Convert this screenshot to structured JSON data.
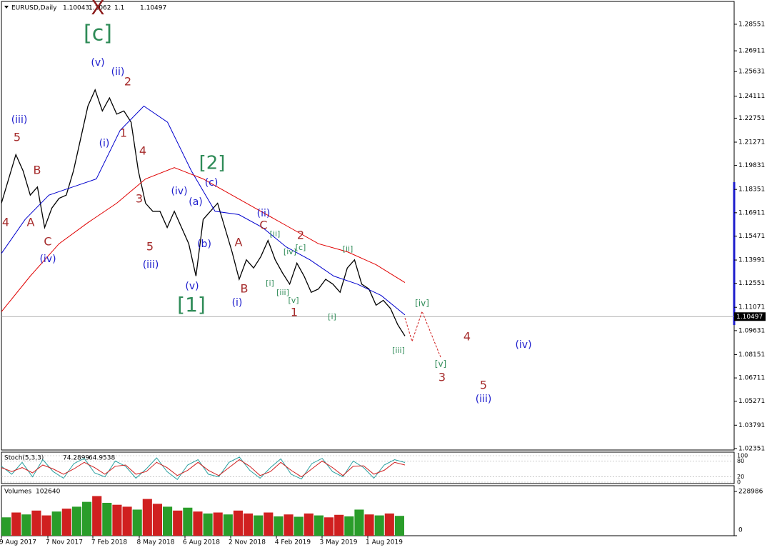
{
  "chart_data": [
    {
      "type": "line",
      "symbol": "EURUSD,Daily",
      "ohlc": [
        1.10043,
        1.1062,
        1.1,
        1.10497
      ],
      "ylim": [
        1.0226,
        1.2996
      ],
      "yticks": [
        1.28551,
        1.26911,
        1.25631,
        1.24111,
        1.22751,
        1.21271,
        1.19831,
        1.18351,
        1.16911,
        1.15471,
        1.13991,
        1.12551,
        1.11071,
        1.09631,
        1.08151,
        1.06711,
        1.05271,
        1.03791,
        1.02351
      ],
      "xtick_labels": [
        "9 Aug 2017",
        "7 Nov 2017",
        "7 Feb 2018",
        "8 May 2018",
        "6 Aug 2018",
        "2 Nov 2018",
        "4 Feb 2019",
        "3 May 2019",
        "1 Aug 2019"
      ],
      "series": [
        {
          "name": "EURUSD",
          "color": "#000000",
          "values": [
            1.175,
            1.19,
            1.205,
            1.195,
            1.18,
            1.185,
            1.16,
            1.172,
            1.178,
            1.18,
            1.195,
            1.215,
            1.235,
            1.245,
            1.232,
            1.24,
            1.23,
            1.232,
            1.225,
            1.195,
            1.175,
            1.17,
            1.17,
            1.16,
            1.17,
            1.16,
            1.15,
            1.13,
            1.165,
            1.17,
            1.175,
            1.16,
            1.145,
            1.128,
            1.14,
            1.135,
            1.142,
            1.152,
            1.14,
            1.132,
            1.125,
            1.138,
            1.13,
            1.12,
            1.122,
            1.128,
            1.125,
            1.12,
            1.135,
            1.14,
            1.125,
            1.122,
            1.112,
            1.115,
            1.11,
            1.1,
            1.093
          ]
        },
        {
          "name": "MA fast",
          "color": "#0000cd",
          "values": [
            1.144,
            1.165,
            1.18,
            1.185,
            1.19,
            1.22,
            1.235,
            1.225,
            1.195,
            1.17,
            1.168,
            1.16,
            1.148,
            1.14,
            1.13,
            1.125,
            1.118,
            1.106
          ]
        },
        {
          "name": "MA slow",
          "color": "#e00000",
          "values": [
            1.108,
            1.13,
            1.15,
            1.163,
            1.175,
            1.19,
            1.197,
            1.19,
            1.18,
            1.17,
            1.16,
            1.15,
            1.145,
            1.137,
            1.126
          ]
        }
      ],
      "annotations": [
        {
          "text": "X",
          "color": "#8b1a1a"
        },
        {
          "text": "[c]",
          "color": "#2e8b57"
        },
        {
          "text": "(v)",
          "color": "#1c1ccd"
        },
        {
          "text": "(ii)",
          "color": "#1c1ccd"
        },
        {
          "text": "2",
          "color": "#a52a2a"
        },
        {
          "text": "(iii)",
          "color": "#1c1ccd"
        },
        {
          "text": "5",
          "color": "#a52a2a"
        },
        {
          "text": "1",
          "color": "#a52a2a"
        },
        {
          "text": "(i)",
          "color": "#1c1ccd"
        },
        {
          "text": "4",
          "color": "#a52a2a"
        },
        {
          "text": "B",
          "color": "#a52a2a"
        },
        {
          "text": "[2]",
          "color": "#2e8b57"
        },
        {
          "text": "(c)",
          "color": "#1c1ccd"
        },
        {
          "text": "(iv)",
          "color": "#1c1ccd"
        },
        {
          "text": "3",
          "color": "#a52a2a"
        },
        {
          "text": "(a)",
          "color": "#1c1ccd"
        },
        {
          "text": "4",
          "color": "#a52a2a"
        },
        {
          "text": "A",
          "color": "#a52a2a"
        },
        {
          "text": "(ii)",
          "color": "#1c1ccd"
        },
        {
          "text": "C",
          "color": "#a52a2a"
        },
        {
          "text": "2",
          "color": "#a52a2a"
        },
        {
          "text": "[ii]",
          "color": "#2e8b57"
        },
        {
          "text": "[c]",
          "color": "#2e8b57"
        },
        {
          "text": "[iv]",
          "color": "#2e8b57"
        },
        {
          "text": "[ii]",
          "color": "#2e8b57"
        },
        {
          "text": "C",
          "color": "#a52a2a"
        },
        {
          "text": "(b)",
          "color": "#1c1ccd"
        },
        {
          "text": "A",
          "color": "#a52a2a"
        },
        {
          "text": "5",
          "color": "#a52a2a"
        },
        {
          "text": "(iv)",
          "color": "#1c1ccd"
        },
        {
          "text": "(iii)",
          "color": "#1c1ccd"
        },
        {
          "text": "(v)",
          "color": "#1c1ccd"
        },
        {
          "text": "B",
          "color": "#a52a2a"
        },
        {
          "text": "[i]",
          "color": "#2e8b57"
        },
        {
          "text": "[iii]",
          "color": "#2e8b57"
        },
        {
          "text": "[v]",
          "color": "#2e8b57"
        },
        {
          "text": "(i)",
          "color": "#1c1ccd"
        },
        {
          "text": "1",
          "color": "#a52a2a"
        },
        {
          "text": "[1]",
          "color": "#2e8b57"
        },
        {
          "text": "[i]",
          "color": "#2e8b57"
        },
        {
          "text": "[iii]",
          "color": "#2e8b57"
        },
        {
          "text": "[iv]",
          "color": "#2e8b57"
        },
        {
          "text": "4",
          "color": "#a52a2a"
        },
        {
          "text": "(iv)",
          "color": "#1c1ccd"
        },
        {
          "text": "[v]",
          "color": "#2e8b57"
        },
        {
          "text": "3",
          "color": "#a52a2a"
        },
        {
          "text": "5",
          "color": "#a52a2a"
        },
        {
          "text": "(iii)",
          "color": "#1c1ccd"
        }
      ]
    },
    {
      "type": "line",
      "name": "Stoch(5,3,3)",
      "ylim": [
        0,
        100
      ],
      "yticks": [
        0,
        20,
        80,
        100
      ],
      "series": [
        {
          "name": "%K",
          "color": "#2aa0a0",
          "values": [
            60,
            30,
            75,
            20,
            85,
            40,
            15,
            70,
            90,
            35,
            20,
            80,
            60,
            15,
            50,
            92,
            40,
            10,
            65,
            85,
            30,
            20,
            75,
            95,
            45,
            15,
            55,
            88,
            30,
            12,
            70,
            90,
            40,
            20,
            80,
            55,
            15,
            65,
            85,
            74.2899
          ]
        },
        {
          "name": "%D",
          "color": "#d02020",
          "values": [
            55,
            40,
            55,
            35,
            65,
            50,
            30,
            50,
            75,
            55,
            30,
            60,
            65,
            30,
            40,
            75,
            55,
            25,
            45,
            75,
            45,
            25,
            55,
            85,
            60,
            25,
            40,
            75,
            45,
            20,
            50,
            80,
            55,
            25,
            60,
            62,
            30,
            45,
            75,
            64.9538
          ]
        }
      ]
    },
    {
      "type": "bar",
      "name": "Volumes",
      "ylim": [
        0,
        228986
      ],
      "yticks": [
        0,
        228986
      ],
      "values": [
        95000,
        120000,
        110000,
        130000,
        105000,
        125000,
        140000,
        150000,
        175000,
        205000,
        170000,
        160000,
        150000,
        135000,
        190000,
        165000,
        150000,
        130000,
        145000,
        125000,
        115000,
        120000,
        110000,
        130000,
        115000,
        105000,
        120000,
        100000,
        110000,
        98000,
        115000,
        105000,
        95000,
        108000,
        100000,
        135000,
        110000,
        105000,
        115000,
        102640
      ],
      "colors": [
        "#2a9d2a",
        "#d02020",
        "#2a9d2a",
        "#d02020",
        "#d02020",
        "#2a9d2a",
        "#d02020",
        "#2a9d2a",
        "#2a9d2a",
        "#d02020",
        "#2a9d2a",
        "#d02020",
        "#d02020",
        "#2a9d2a",
        "#d02020",
        "#d02020",
        "#2a9d2a",
        "#d02020",
        "#2a9d2a",
        "#d02020",
        "#2a9d2a",
        "#d02020",
        "#2a9d2a",
        "#d02020",
        "#d02020",
        "#2a9d2a",
        "#d02020",
        "#2a9d2a",
        "#d02020",
        "#2a9d2a",
        "#d02020",
        "#2a9d2a",
        "#d02020",
        "#d02020",
        "#2a9d2a",
        "#2a9d2a",
        "#d02020",
        "#2a9d2a",
        "#d02020",
        "#2a9d2a"
      ]
    }
  ]
}
